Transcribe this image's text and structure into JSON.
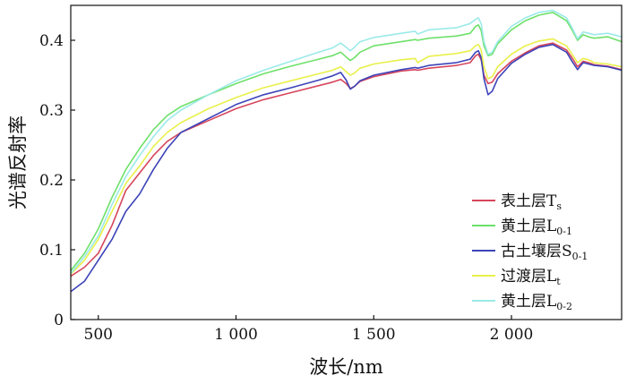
{
  "chart_data": {
    "type": "line",
    "xlabel": "波长/nm",
    "ylabel": "光谱反射率",
    "xlim": [
      400,
      2400
    ],
    "ylim": [
      0,
      0.45
    ],
    "x_ticks": [
      500,
      1000,
      1500,
      2000
    ],
    "x_tick_labels": [
      "500",
      "1 000",
      "1 500",
      "2 000"
    ],
    "y_ticks": [
      0,
      0.1,
      0.2,
      0.3,
      0.4
    ],
    "y_tick_labels": [
      "0",
      "0.1",
      "0.2",
      "0.3",
      "0.4"
    ],
    "grid": false,
    "legend_position": "bottom-right",
    "x": [
      400,
      450,
      500,
      550,
      600,
      650,
      700,
      750,
      800,
      900,
      1000,
      1100,
      1200,
      1300,
      1350,
      1380,
      1400,
      1415,
      1430,
      1450,
      1500,
      1600,
      1650,
      1660,
      1700,
      1800,
      1850,
      1870,
      1880,
      1890,
      1900,
      1915,
      1930,
      1950,
      2000,
      2050,
      2100,
      2150,
      2200,
      2220,
      2240,
      2260,
      2280,
      2300,
      2350,
      2400
    ],
    "series": [
      {
        "name": "表土层Ts",
        "label_main": "表土层T",
        "label_sub": "s",
        "color": "#d6465c",
        "values": [
          0.062,
          0.075,
          0.095,
          0.135,
          0.185,
          0.21,
          0.235,
          0.255,
          0.268,
          0.285,
          0.302,
          0.315,
          0.325,
          0.335,
          0.34,
          0.344,
          0.338,
          0.331,
          0.334,
          0.341,
          0.348,
          0.356,
          0.358,
          0.357,
          0.36,
          0.364,
          0.368,
          0.378,
          0.38,
          0.372,
          0.35,
          0.338,
          0.34,
          0.352,
          0.37,
          0.382,
          0.392,
          0.396,
          0.386,
          0.375,
          0.362,
          0.37,
          0.368,
          0.365,
          0.363,
          0.358
        ]
      },
      {
        "name": "黄土层L0-1",
        "label_main": "黄土层L",
        "label_sub": "0-1",
        "color": "#6ee06a",
        "values": [
          0.07,
          0.095,
          0.13,
          0.175,
          0.215,
          0.245,
          0.272,
          0.292,
          0.305,
          0.322,
          0.338,
          0.352,
          0.363,
          0.373,
          0.378,
          0.383,
          0.376,
          0.371,
          0.375,
          0.383,
          0.392,
          0.398,
          0.401,
          0.4,
          0.403,
          0.406,
          0.41,
          0.42,
          0.422,
          0.414,
          0.392,
          0.378,
          0.38,
          0.395,
          0.415,
          0.428,
          0.436,
          0.44,
          0.428,
          0.415,
          0.4,
          0.408,
          0.405,
          0.403,
          0.405,
          0.398
        ]
      },
      {
        "name": "古土壤层S0-1",
        "label_main": "古土壤层S",
        "label_sub": "0-1",
        "color": "#3c43b8",
        "values": [
          0.04,
          0.055,
          0.085,
          0.115,
          0.155,
          0.18,
          0.215,
          0.245,
          0.268,
          0.288,
          0.308,
          0.322,
          0.332,
          0.343,
          0.349,
          0.354,
          0.343,
          0.33,
          0.334,
          0.342,
          0.35,
          0.358,
          0.361,
          0.36,
          0.364,
          0.368,
          0.373,
          0.383,
          0.385,
          0.375,
          0.345,
          0.322,
          0.327,
          0.345,
          0.367,
          0.38,
          0.39,
          0.394,
          0.383,
          0.37,
          0.358,
          0.368,
          0.366,
          0.364,
          0.362,
          0.357
        ]
      },
      {
        "name": "过渡层Lt",
        "label_main": "过渡层L",
        "label_sub": "t",
        "color": "#e9f04a",
        "values": [
          0.065,
          0.085,
          0.115,
          0.155,
          0.195,
          0.22,
          0.248,
          0.268,
          0.282,
          0.302,
          0.318,
          0.332,
          0.342,
          0.352,
          0.357,
          0.362,
          0.355,
          0.35,
          0.353,
          0.36,
          0.366,
          0.372,
          0.374,
          0.368,
          0.377,
          0.381,
          0.385,
          0.392,
          0.394,
          0.386,
          0.362,
          0.345,
          0.348,
          0.362,
          0.38,
          0.392,
          0.399,
          0.402,
          0.392,
          0.38,
          0.368,
          0.374,
          0.372,
          0.368,
          0.366,
          0.362
        ]
      },
      {
        "name": "黄土层L0-2",
        "label_main": "黄土层L",
        "label_sub": "0-2",
        "color": "#9beae8",
        "values": [
          0.066,
          0.09,
          0.12,
          0.165,
          0.205,
          0.235,
          0.262,
          0.285,
          0.3,
          0.322,
          0.342,
          0.357,
          0.37,
          0.383,
          0.389,
          0.396,
          0.39,
          0.385,
          0.39,
          0.398,
          0.404,
          0.41,
          0.413,
          0.409,
          0.415,
          0.418,
          0.424,
          0.43,
          0.432,
          0.424,
          0.398,
          0.38,
          0.383,
          0.398,
          0.42,
          0.432,
          0.44,
          0.443,
          0.432,
          0.418,
          0.402,
          0.412,
          0.41,
          0.408,
          0.41,
          0.405
        ]
      }
    ]
  }
}
